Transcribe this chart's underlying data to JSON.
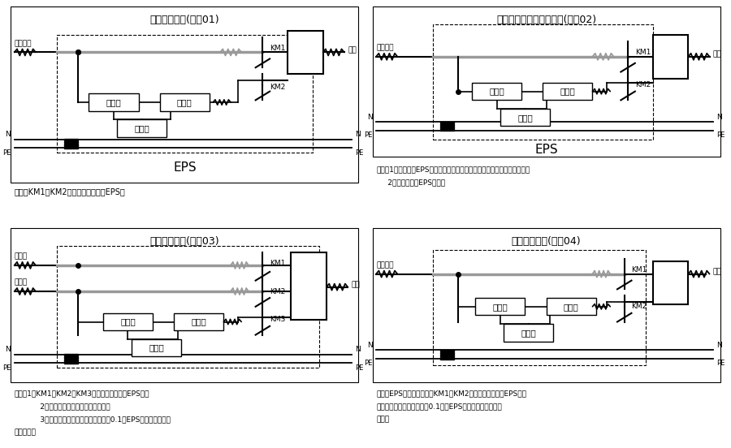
{
  "bg_color": "#ffffff",
  "title01": "单电源原理图(编号01)",
  "title02": "做第二回路双回路原理图(编号02)",
  "title03": "双电源原理图(编号03)",
  "title04": "双电源原理图(编号04)",
  "eps_label": "EPS",
  "input_label": "三相输入",
  "charger_label": "充电器",
  "inverter_label": "逆变器",
  "battery_label": "电池组",
  "output_label": "输出",
  "normal_power": "常用电",
  "backup_power": "备用电",
  "note01": "说明：KM1、KM2为电气机械互锁在EPS内",
  "note02_1": "说明：1、此种情况EPS的逆变器在关机状态在无市电时立即开机逆变输出。",
  "note02_2": "     2、互投装置在EPS之外。",
  "note03_1": "说明：1、KM1、KM2、KM3为机械电气互锁在EPS内；",
  "note03_2": "     2、充电器可接在备用或常用电上；",
  "note03_3": "     3、无常用电时，备用电若投入大于0.1秒EPS先投入备用电来",
  "note03_4": "后再退出。",
  "note04_1": "说明：EPS相当于第三电源KM1、KM2为机械电气互锁在EPS内无",
  "note04_2": "常用点时备用电若投入大于0.1秒，EPS先投入备用电来后再",
  "note04_3": "退出。"
}
